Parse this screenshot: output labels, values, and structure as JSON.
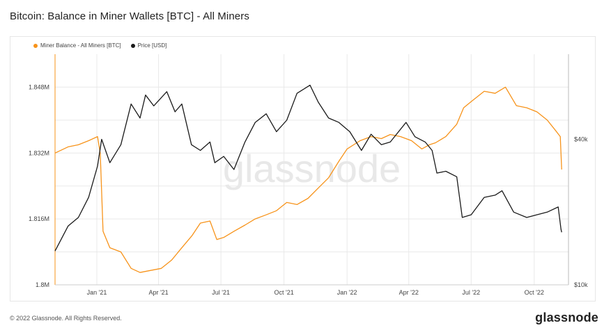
{
  "title": "Bitcoin: Balance in Miner Wallets [BTC] - All Miners",
  "footer": {
    "copyright": "© 2022 Glassnode. All Rights Reserved.",
    "brand": "glassnode"
  },
  "watermark": "glassnode",
  "colors": {
    "balance": "#f7931a",
    "price": "#1a1a1a",
    "grid": "#e9e9e9",
    "axis": "#f7931a"
  },
  "chart_data": {
    "type": "line",
    "legend": [
      "Miner Balance - All Miners [BTC]",
      "Price [USD]"
    ],
    "legend_position": "top-left",
    "grid": true,
    "x_tick_labels": [
      "Jan '21",
      "Apr '21",
      "Jul '21",
      "Oct '21",
      "Jan '22",
      "Apr '22",
      "Jul '22",
      "Oct '22"
    ],
    "x_tick_dates": [
      "2021-01-01",
      "2021-04-01",
      "2021-07-01",
      "2021-10-01",
      "2022-01-01",
      "2022-04-01",
      "2022-07-01",
      "2022-10-01"
    ],
    "xlim": [
      "2020-11-01",
      "2022-11-20"
    ],
    "y_left": {
      "label": "",
      "ticks": [
        "1.8M",
        "1.816M",
        "1.832M",
        "1.848M"
      ],
      "tick_values": [
        1800000,
        1816000,
        1832000,
        1848000
      ],
      "lim": [
        1800000,
        1856000
      ]
    },
    "y_right": {
      "label": "",
      "scale": "log",
      "ticks": [
        "$10k",
        "$40k"
      ],
      "tick_values": [
        10000,
        40000
      ],
      "lim": [
        10000,
        90000
      ]
    },
    "series": [
      {
        "name": "Miner Balance - All Miners [BTC]",
        "axis": "left",
        "dates": [
          "2020-11-01",
          "2020-11-20",
          "2020-12-05",
          "2020-12-20",
          "2021-01-02",
          "2021-01-06",
          "2021-01-10",
          "2021-01-20",
          "2021-02-05",
          "2021-02-20",
          "2021-03-05",
          "2021-03-20",
          "2021-04-05",
          "2021-04-20",
          "2021-05-05",
          "2021-05-20",
          "2021-06-01",
          "2021-06-15",
          "2021-06-25",
          "2021-07-05",
          "2021-07-20",
          "2021-08-05",
          "2021-08-20",
          "2021-09-05",
          "2021-09-20",
          "2021-10-05",
          "2021-10-20",
          "2021-11-05",
          "2021-11-20",
          "2021-12-05",
          "2021-12-20",
          "2022-01-01",
          "2022-01-20",
          "2022-02-05",
          "2022-02-20",
          "2022-03-05",
          "2022-03-20",
          "2022-04-05",
          "2022-04-20",
          "2022-05-01",
          "2022-05-10",
          "2022-05-25",
          "2022-06-10",
          "2022-06-20",
          "2022-07-01",
          "2022-07-20",
          "2022-08-05",
          "2022-08-20",
          "2022-09-05",
          "2022-09-20",
          "2022-10-05",
          "2022-10-20",
          "2022-11-01",
          "2022-11-08",
          "2022-11-10"
        ],
        "values": [
          1832000,
          1833500,
          1834000,
          1835000,
          1836000,
          1832000,
          1813000,
          1809000,
          1808000,
          1804000,
          1803000,
          1803500,
          1804000,
          1806000,
          1809000,
          1812000,
          1815000,
          1815500,
          1811000,
          1811500,
          1813000,
          1814500,
          1816000,
          1817000,
          1818000,
          1820000,
          1819500,
          1821000,
          1823500,
          1826000,
          1830000,
          1833000,
          1835000,
          1836000,
          1835500,
          1836500,
          1836000,
          1835000,
          1833000,
          1834000,
          1834500,
          1836000,
          1839000,
          1843000,
          1844500,
          1847000,
          1846500,
          1848000,
          1843500,
          1843000,
          1842000,
          1840000,
          1837500,
          1836000,
          1828000
        ]
      },
      {
        "name": "Price [USD]",
        "axis": "right",
        "dates": [
          "2020-11-01",
          "2020-11-20",
          "2020-12-05",
          "2020-12-20",
          "2021-01-02",
          "2021-01-08",
          "2021-01-20",
          "2021-02-05",
          "2021-02-20",
          "2021-03-05",
          "2021-03-13",
          "2021-03-25",
          "2021-04-13",
          "2021-04-25",
          "2021-05-05",
          "2021-05-19",
          "2021-06-01",
          "2021-06-15",
          "2021-06-22",
          "2021-07-05",
          "2021-07-20",
          "2021-08-05",
          "2021-08-20",
          "2021-09-05",
          "2021-09-20",
          "2021-10-05",
          "2021-10-20",
          "2021-11-08",
          "2021-11-20",
          "2021-12-05",
          "2021-12-20",
          "2022-01-05",
          "2022-01-22",
          "2022-02-05",
          "2022-02-20",
          "2022-03-05",
          "2022-03-28",
          "2022-04-10",
          "2022-04-25",
          "2022-05-05",
          "2022-05-12",
          "2022-05-25",
          "2022-06-10",
          "2022-06-18",
          "2022-07-01",
          "2022-07-20",
          "2022-08-05",
          "2022-08-15",
          "2022-09-01",
          "2022-09-20",
          "2022-10-05",
          "2022-10-20",
          "2022-11-05",
          "2022-11-09",
          "2022-11-10"
        ],
        "values": [
          13800,
          17500,
          19000,
          23000,
          31000,
          40000,
          32000,
          38000,
          56000,
          49000,
          61000,
          55000,
          63000,
          52000,
          56000,
          38000,
          36000,
          39000,
          32000,
          34000,
          30000,
          39000,
          47000,
          51000,
          43000,
          48000,
          62000,
          67000,
          57000,
          49000,
          47000,
          43000,
          36000,
          42000,
          38000,
          39000,
          47000,
          41000,
          39000,
          36000,
          29000,
          29500,
          28000,
          19000,
          19500,
          23000,
          23500,
          24500,
          20000,
          19000,
          19500,
          20000,
          21000,
          17000,
          16500
        ]
      }
    ]
  }
}
